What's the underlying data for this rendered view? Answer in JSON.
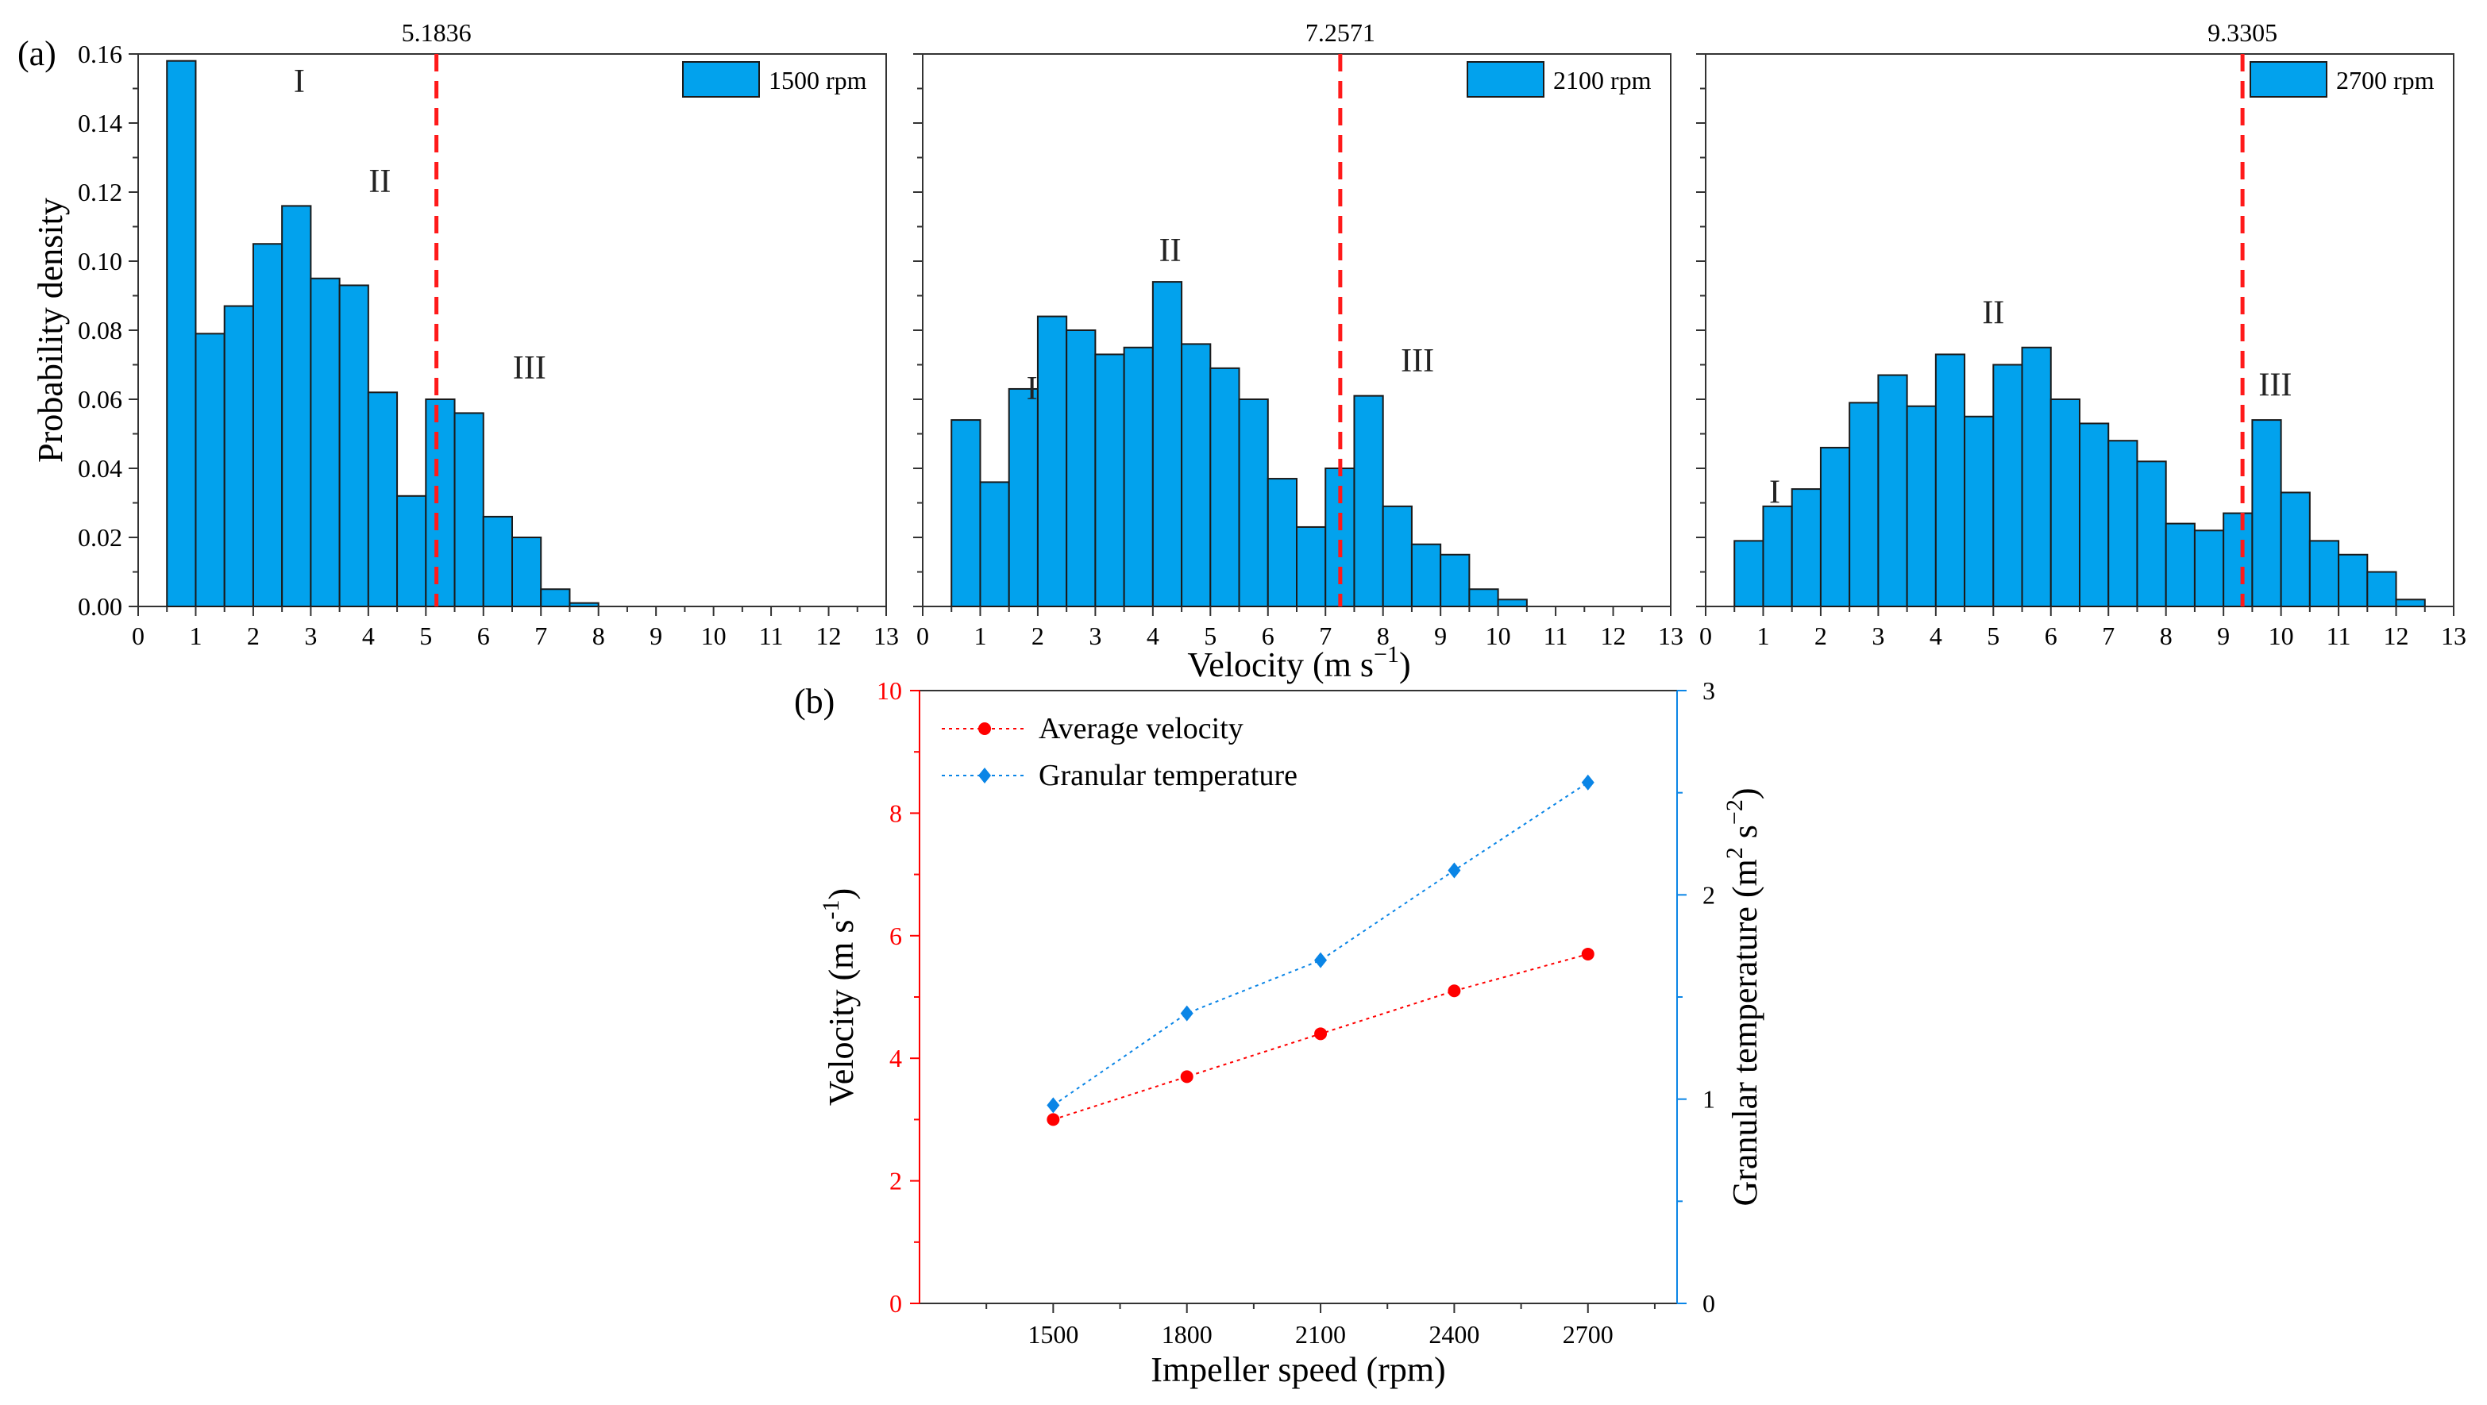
{
  "chart_data": [
    {
      "type": "bar",
      "panel": "(a)",
      "legend": "1500 rpm",
      "threshold_label": "5.1836",
      "threshold": 5.1836,
      "bin_width": 0.5,
      "bin_starts": [
        0.5,
        1,
        1.5,
        2,
        2.5,
        3,
        3.5,
        4,
        4.5,
        5,
        5.5,
        6,
        6.5,
        7,
        7.5
      ],
      "values": [
        0.158,
        0.079,
        0.087,
        0.105,
        0.116,
        0.095,
        0.093,
        0.062,
        0.032,
        0.06,
        0.056,
        0.026,
        0.02,
        0.005,
        0.001
      ],
      "regions": [
        {
          "text": "I",
          "x": 2.8,
          "y": 0.149
        },
        {
          "text": "II",
          "x": 4.2,
          "y": 0.12
        },
        {
          "text": "III",
          "x": 6.8,
          "y": 0.066
        }
      ],
      "xlim": [
        0,
        13
      ],
      "ylim": [
        0,
        0.16
      ],
      "xticks": [
        0,
        1,
        2,
        3,
        4,
        5,
        6,
        7,
        8,
        9,
        10,
        11,
        12,
        13
      ],
      "yticks": [
        0.0,
        0.02,
        0.04,
        0.06,
        0.08,
        0.1,
        0.12,
        0.14,
        0.16
      ],
      "ytick_labels": [
        "0.00",
        "0.02",
        "0.04",
        "0.06",
        "0.08",
        "0.10",
        "0.12",
        "0.14",
        "0.16"
      ],
      "ylabel": "Probability density"
    },
    {
      "type": "bar",
      "legend": "2100 rpm",
      "threshold_label": "7.2571",
      "threshold": 7.2571,
      "bin_width": 0.5,
      "bin_starts": [
        0.5,
        1,
        1.5,
        2,
        2.5,
        3,
        3.5,
        4,
        4.5,
        5,
        5.5,
        6,
        6.5,
        7,
        7.5,
        8,
        8.5,
        9,
        9.5,
        10
      ],
      "values": [
        0.054,
        0.036,
        0.063,
        0.084,
        0.08,
        0.073,
        0.075,
        0.094,
        0.076,
        0.069,
        0.06,
        0.037,
        0.023,
        0.04,
        0.061,
        0.029,
        0.018,
        0.015,
        0.005,
        0.002
      ],
      "regions": [
        {
          "text": "I",
          "x": 1.9,
          "y": 0.06
        },
        {
          "text": "II",
          "x": 4.3,
          "y": 0.1
        },
        {
          "text": "III",
          "x": 8.6,
          "y": 0.068
        }
      ],
      "xlim": [
        0,
        13
      ],
      "ylim": [
        0,
        0.16
      ],
      "xticks": [
        0,
        1,
        2,
        3,
        4,
        5,
        6,
        7,
        8,
        9,
        10,
        11,
        12,
        13
      ]
    },
    {
      "type": "bar",
      "legend": "2700 rpm",
      "threshold_label": "9.3305",
      "threshold": 9.3305,
      "bin_width": 0.5,
      "bin_starts": [
        0.5,
        1,
        1.5,
        2,
        2.5,
        3,
        3.5,
        4,
        4.5,
        5,
        5.5,
        6,
        6.5,
        7,
        7.5,
        8,
        8.5,
        9,
        9.5,
        10,
        10.5,
        11,
        11.5,
        12
      ],
      "values": [
        0.019,
        0.029,
        0.034,
        0.046,
        0.059,
        0.067,
        0.058,
        0.073,
        0.055,
        0.07,
        0.075,
        0.06,
        0.053,
        0.048,
        0.042,
        0.024,
        0.022,
        0.027,
        0.054,
        0.033,
        0.019,
        0.015,
        0.01,
        0.002
      ],
      "regions": [
        {
          "text": "I",
          "x": 1.2,
          "y": 0.03
        },
        {
          "text": "II",
          "x": 5.0,
          "y": 0.082
        },
        {
          "text": "III",
          "x": 9.9,
          "y": 0.061
        }
      ],
      "xlim": [
        0,
        13
      ],
      "ylim": [
        0,
        0.16
      ],
      "xticks": [
        0,
        1,
        2,
        3,
        4,
        5,
        6,
        7,
        8,
        9,
        10,
        11,
        12,
        13
      ]
    },
    {
      "type": "line",
      "panel": "(b)",
      "x": [
        1500,
        1800,
        2100,
        2400,
        2700
      ],
      "xlim": [
        1200,
        2900
      ],
      "xticks": [
        1500,
        1800,
        2100,
        2400,
        2700
      ],
      "xlabel": "Impeller speed (rpm)",
      "series": [
        {
          "name": "Average velocity",
          "axis": "left",
          "values": [
            3.0,
            3.7,
            4.4,
            5.1,
            5.7
          ],
          "color": "#ff0000"
        },
        {
          "name": "Granular temperature",
          "axis": "right",
          "values": [
            0.97,
            1.42,
            1.68,
            2.12,
            2.55
          ],
          "color": "#0a85e6"
        }
      ],
      "ylim_left": [
        0,
        10
      ],
      "yticks_left": [
        0,
        2,
        4,
        6,
        8,
        10
      ],
      "ylim_right": [
        0,
        3
      ],
      "yticks_right": [
        0,
        1,
        2,
        3
      ],
      "ylabel_left": "Velocity (m s",
      "ylabel_left_sup": "-1",
      "ylabel_right": "Granular temperature (m",
      "ylabel_right_sup1": "2",
      "ylabel_right_mid": " s",
      "ylabel_right_sup2": "−2"
    }
  ],
  "shared_xlabel": {
    "text": "Velocity (m s",
    "sup": "−1"
  },
  "colors": {
    "bar": "#02a2ed",
    "threshold": "#ff1a1a",
    "left_axis": "#ff0000",
    "right_axis": "#0a85e6"
  }
}
